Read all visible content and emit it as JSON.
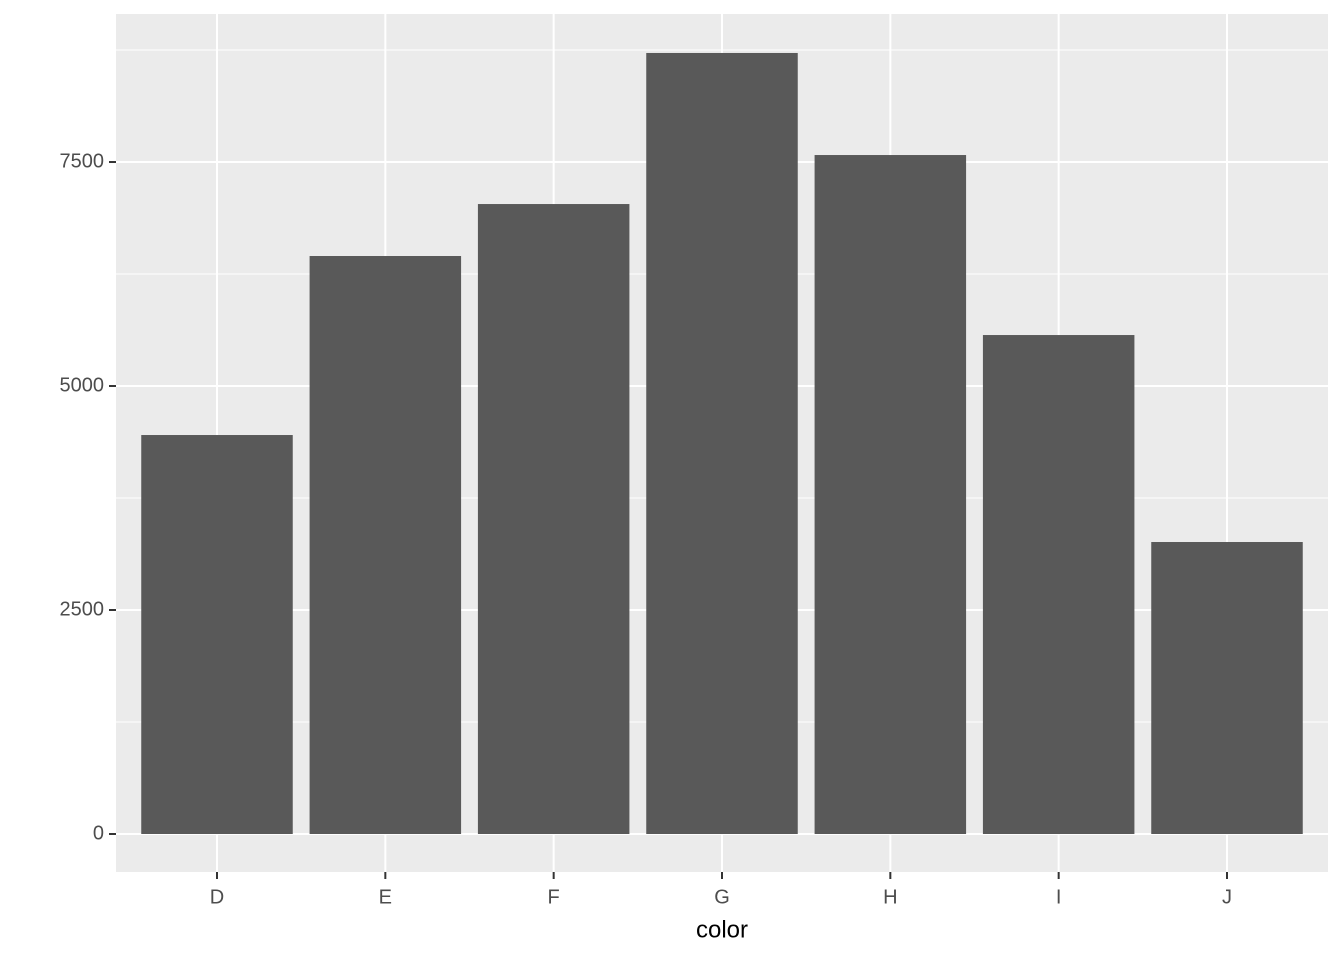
{
  "chart_data": {
    "type": "bar",
    "x_label": "color",
    "categories": [
      "D",
      "E",
      "F",
      "G",
      "H",
      "I",
      "J"
    ],
    "values": [
      4453,
      6451,
      7031,
      8717,
      7578,
      5569,
      3259
    ],
    "color": "#595959",
    "ylim": [
      -424,
      9152
    ],
    "yticks": [
      0,
      2500,
      5000,
      7500
    ],
    "grid": true
  }
}
